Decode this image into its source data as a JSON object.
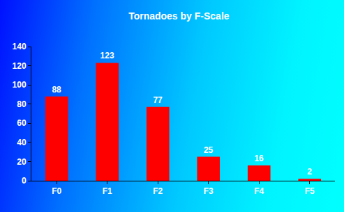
{
  "chart_data": {
    "type": "bar",
    "title": "Tornadoes by F-Scale",
    "categories": [
      "F0",
      "F1",
      "F2",
      "F3",
      "F4",
      "F5"
    ],
    "values": [
      88,
      123,
      77,
      25,
      16,
      2
    ],
    "color": "#ff0000",
    "ylim": [
      0,
      140
    ],
    "yticks": [
      0,
      20,
      40,
      60,
      80,
      100,
      120,
      140
    ],
    "grid": false,
    "data_labels": true
  }
}
